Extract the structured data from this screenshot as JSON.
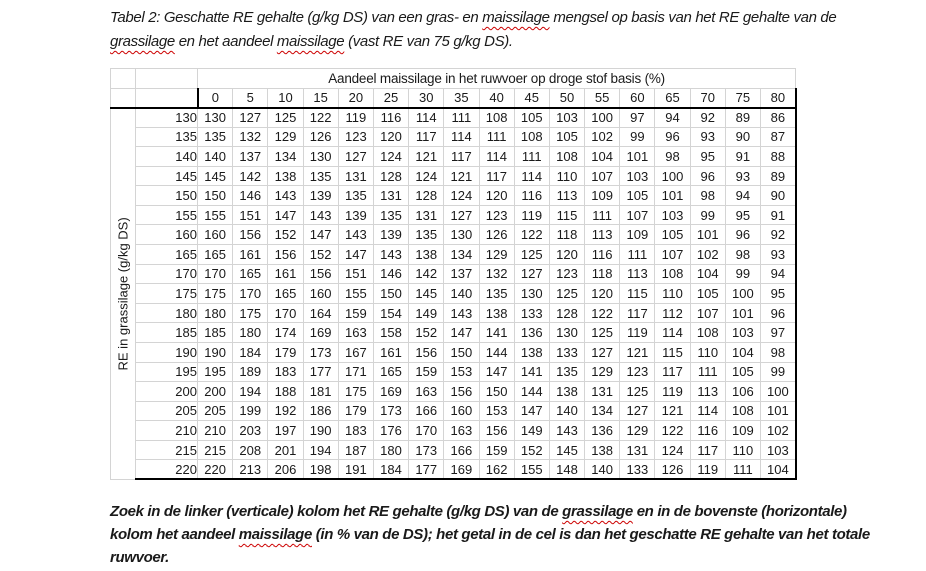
{
  "title": {
    "segments": [
      {
        "text": "Tabel 2: Geschatte RE gehalte (g/kg DS) van een gras- en "
      },
      {
        "text": "maissilage",
        "wavy": true
      },
      {
        "text": " mengsel op basis van het RE gehalte van de\n"
      },
      {
        "text": "grassilage",
        "wavy": true
      },
      {
        "text": " en het aandeel "
      },
      {
        "text": "maissilage",
        "wavy": true
      },
      {
        "text": " (vast RE van 75 g/kg DS)."
      }
    ]
  },
  "table": {
    "column_axis_title": "Aandeel maissilage in het ruwvoer op droge stof basis (%)",
    "row_axis_title": "RE in grassilage (g/kg DS)",
    "column_headers": [
      "0",
      "5",
      "10",
      "15",
      "20",
      "25",
      "30",
      "35",
      "40",
      "45",
      "50",
      "55",
      "60",
      "65",
      "70",
      "75",
      "80"
    ],
    "rows": [
      {
        "label": "130",
        "values": [
          130,
          127,
          125,
          122,
          119,
          116,
          114,
          111,
          108,
          105,
          103,
          100,
          97,
          94,
          92,
          89,
          86
        ]
      },
      {
        "label": "135",
        "values": [
          135,
          132,
          129,
          126,
          123,
          120,
          117,
          114,
          111,
          108,
          105,
          102,
          99,
          96,
          93,
          90,
          87
        ]
      },
      {
        "label": "140",
        "values": [
          140,
          137,
          134,
          130,
          127,
          124,
          121,
          117,
          114,
          111,
          108,
          104,
          101,
          98,
          95,
          91,
          88
        ]
      },
      {
        "label": "145",
        "values": [
          145,
          142,
          138,
          135,
          131,
          128,
          124,
          121,
          117,
          114,
          110,
          107,
          103,
          100,
          96,
          93,
          89
        ]
      },
      {
        "label": "150",
        "values": [
          150,
          146,
          143,
          139,
          135,
          131,
          128,
          124,
          120,
          116,
          113,
          109,
          105,
          101,
          98,
          94,
          90
        ]
      },
      {
        "label": "155",
        "values": [
          155,
          151,
          147,
          143,
          139,
          135,
          131,
          127,
          123,
          119,
          115,
          111,
          107,
          103,
          99,
          95,
          91
        ]
      },
      {
        "label": "160",
        "values": [
          160,
          156,
          152,
          147,
          143,
          139,
          135,
          130,
          126,
          122,
          118,
          113,
          109,
          105,
          101,
          96,
          92
        ]
      },
      {
        "label": "165",
        "values": [
          165,
          161,
          156,
          152,
          147,
          143,
          138,
          134,
          129,
          125,
          120,
          116,
          111,
          107,
          102,
          98,
          93
        ]
      },
      {
        "label": "170",
        "values": [
          170,
          165,
          161,
          156,
          151,
          146,
          142,
          137,
          132,
          127,
          123,
          118,
          113,
          108,
          104,
          99,
          94
        ]
      },
      {
        "label": "175",
        "values": [
          175,
          170,
          165,
          160,
          155,
          150,
          145,
          140,
          135,
          130,
          125,
          120,
          115,
          110,
          105,
          100,
          95
        ]
      },
      {
        "label": "180",
        "values": [
          180,
          175,
          170,
          164,
          159,
          154,
          149,
          143,
          138,
          133,
          128,
          122,
          117,
          112,
          107,
          101,
          96
        ]
      },
      {
        "label": "185",
        "values": [
          185,
          180,
          174,
          169,
          163,
          158,
          152,
          147,
          141,
          136,
          130,
          125,
          119,
          114,
          108,
          103,
          97
        ]
      },
      {
        "label": "190",
        "values": [
          190,
          184,
          179,
          173,
          167,
          161,
          156,
          150,
          144,
          138,
          133,
          127,
          121,
          115,
          110,
          104,
          98
        ]
      },
      {
        "label": "195",
        "values": [
          195,
          189,
          183,
          177,
          171,
          165,
          159,
          153,
          147,
          141,
          135,
          129,
          123,
          117,
          111,
          105,
          99
        ]
      },
      {
        "label": "200",
        "values": [
          200,
          194,
          188,
          181,
          175,
          169,
          163,
          156,
          150,
          144,
          138,
          131,
          125,
          119,
          113,
          106,
          100
        ]
      },
      {
        "label": "205",
        "values": [
          205,
          199,
          192,
          186,
          179,
          173,
          166,
          160,
          153,
          147,
          140,
          134,
          127,
          121,
          114,
          108,
          101
        ]
      },
      {
        "label": "210",
        "values": [
          210,
          203,
          197,
          190,
          183,
          176,
          170,
          163,
          156,
          149,
          143,
          136,
          129,
          122,
          116,
          109,
          102
        ]
      },
      {
        "label": "215",
        "values": [
          215,
          208,
          201,
          194,
          187,
          180,
          173,
          166,
          159,
          152,
          145,
          138,
          131,
          124,
          117,
          110,
          103
        ]
      },
      {
        "label": "220",
        "values": [
          220,
          213,
          206,
          198,
          191,
          184,
          177,
          169,
          162,
          155,
          148,
          140,
          133,
          126,
          119,
          111,
          104
        ]
      }
    ]
  },
  "footer": {
    "segments": [
      {
        "text": "Zoek in de linker (verticale) kolom het RE gehalte (g/kg DS) van de "
      },
      {
        "text": "grassilage",
        "wavy": true
      },
      {
        "text": " en in de bovenste (horizontale)\nkolom het aandeel "
      },
      {
        "text": "maissilage",
        "wavy": true
      },
      {
        "text": " (in % van de DS); het getal in de cel is dan het geschatte RE gehalte van het totale\nruwvoer."
      }
    ]
  },
  "colors": {
    "squiggle": "#cc0000",
    "border_dark": "#000000",
    "grid_light": "#d4d4d4",
    "header_separator": "#9a9a9a",
    "text": "#1a1a1a"
  }
}
